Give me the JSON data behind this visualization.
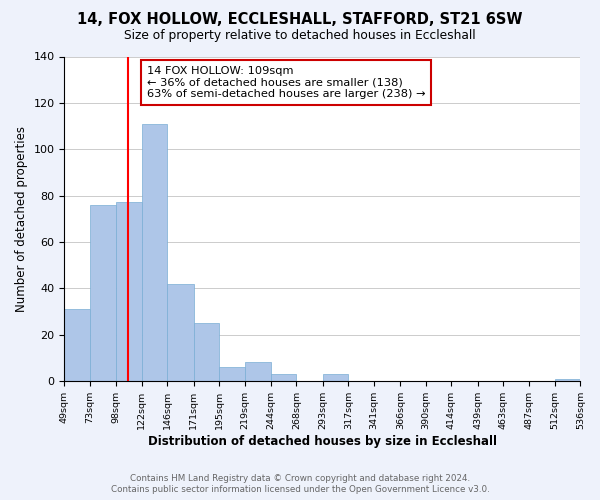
{
  "title": "14, FOX HOLLOW, ECCLESHALL, STAFFORD, ST21 6SW",
  "subtitle": "Size of property relative to detached houses in Eccleshall",
  "xlabel": "Distribution of detached houses by size in Eccleshall",
  "ylabel": "Number of detached properties",
  "bar_edges": [
    49,
    73,
    98,
    122,
    146,
    171,
    195,
    219,
    244,
    268,
    293,
    317,
    341,
    366,
    390,
    414,
    439,
    463,
    487,
    512,
    536
  ],
  "bar_heights": [
    31,
    76,
    77,
    111,
    42,
    25,
    6,
    8,
    3,
    0,
    3,
    0,
    0,
    0,
    0,
    0,
    0,
    0,
    0,
    1
  ],
  "bar_color": "#aec6e8",
  "bar_edge_color": "#7aadd4",
  "property_line_x": 109,
  "property_line_color": "#ff0000",
  "annotation_text": "14 FOX HOLLOW: 109sqm\n← 36% of detached houses are smaller (138)\n63% of semi-detached houses are larger (238) →",
  "annotation_box_color": "#ffffff",
  "annotation_box_edge": "#cc0000",
  "ylim": [
    0,
    140
  ],
  "yticks": [
    0,
    20,
    40,
    60,
    80,
    100,
    120,
    140
  ],
  "tick_labels": [
    "49sqm",
    "73sqm",
    "98sqm",
    "122sqm",
    "146sqm",
    "171sqm",
    "195sqm",
    "219sqm",
    "244sqm",
    "268sqm",
    "293sqm",
    "317sqm",
    "341sqm",
    "366sqm",
    "390sqm",
    "414sqm",
    "439sqm",
    "463sqm",
    "487sqm",
    "512sqm",
    "536sqm"
  ],
  "footer_line1": "Contains HM Land Registry data © Crown copyright and database right 2024.",
  "footer_line2": "Contains public sector information licensed under the Open Government Licence v3.0.",
  "background_color": "#eef2fb",
  "plot_bg_color": "#ffffff"
}
